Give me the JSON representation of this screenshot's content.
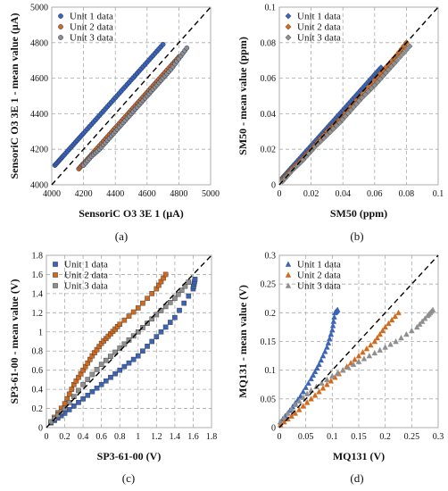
{
  "figure": {
    "labels": [
      "(a)",
      "(b)",
      "(c)",
      "(d)"
    ],
    "legend_labels": [
      "Unit 1 data",
      "Unit 2 data",
      "Unit 3 data"
    ]
  },
  "colors": {
    "unit1": "#3b63b7",
    "unit2": "#d06a1f",
    "unit3": "#8f8f8f",
    "reference": "#000000"
  },
  "chart_data": [
    {
      "type": "scatter",
      "panel": "(a)",
      "xlabel": "SensoriC O3 3E 1 (µA)",
      "ylabel": "SensoriC O3 3E 1 - mean value (µA)",
      "xlim": [
        4000,
        5000
      ],
      "ylim": [
        4000,
        5000
      ],
      "xticks": [
        "4000",
        "4200",
        "4400",
        "4600",
        "4800",
        "5000"
      ],
      "yticks": [
        "4000",
        "4200",
        "4400",
        "4600",
        "4800",
        "5000"
      ],
      "grid": true,
      "legend": "top-left",
      "marker": "circle",
      "reference_line": [
        [
          4000,
          4000
        ],
        [
          5000,
          5000
        ]
      ],
      "series": [
        {
          "name": "Unit 1 data",
          "x": [
            4020,
            4050,
            4080,
            4120,
            4160,
            4200,
            4250,
            4300,
            4350,
            4400,
            4450,
            4500,
            4550,
            4600,
            4650,
            4700
          ],
          "y": [
            4110,
            4140,
            4170,
            4210,
            4250,
            4290,
            4340,
            4390,
            4440,
            4490,
            4540,
            4590,
            4640,
            4690,
            4740,
            4790
          ]
        },
        {
          "name": "Unit 2 data",
          "x": [
            4170,
            4200,
            4250,
            4300,
            4350,
            4400,
            4450,
            4500,
            4550,
            4600,
            4650,
            4700,
            4750,
            4800
          ],
          "y": [
            4090,
            4120,
            4170,
            4220,
            4270,
            4320,
            4370,
            4420,
            4470,
            4520,
            4570,
            4620,
            4670,
            4720
          ]
        },
        {
          "name": "Unit 3 data",
          "x": [
            4200,
            4250,
            4300,
            4350,
            4400,
            4450,
            4500,
            4550,
            4600,
            4650,
            4700,
            4750,
            4800,
            4850
          ],
          "y": [
            4110,
            4160,
            4200,
            4250,
            4300,
            4350,
            4400,
            4450,
            4500,
            4550,
            4600,
            4650,
            4710,
            4770
          ]
        }
      ]
    },
    {
      "type": "scatter",
      "panel": "(b)",
      "xlabel": "SM50 (ppm)",
      "ylabel": "SM50 - mean value (ppm)",
      "xlim": [
        0,
        0.1
      ],
      "ylim": [
        0,
        0.1
      ],
      "xticks": [
        "0",
        "0.02",
        "0.04",
        "0.06",
        "0.08",
        "0.1"
      ],
      "yticks": [
        "0",
        "0.02",
        "0.04",
        "0.06",
        "0.08",
        "0.1"
      ],
      "grid": true,
      "legend": "top-left",
      "marker": "diamond",
      "reference_line": [
        [
          0,
          0
        ],
        [
          0.1,
          0.1
        ]
      ],
      "series": [
        {
          "name": "Unit 1 data",
          "x": [
            0.002,
            0.006,
            0.01,
            0.015,
            0.02,
            0.025,
            0.03,
            0.035,
            0.04,
            0.045,
            0.05,
            0.055,
            0.06,
            0.064
          ],
          "y": [
            0.004,
            0.008,
            0.012,
            0.017,
            0.022,
            0.027,
            0.032,
            0.037,
            0.042,
            0.047,
            0.052,
            0.057,
            0.062,
            0.066
          ]
        },
        {
          "name": "Unit 2 data",
          "x": [
            0.002,
            0.008,
            0.015,
            0.022,
            0.03,
            0.038,
            0.045,
            0.052,
            0.06,
            0.067,
            0.074,
            0.08
          ],
          "y": [
            0.003,
            0.009,
            0.015,
            0.022,
            0.03,
            0.037,
            0.044,
            0.051,
            0.059,
            0.066,
            0.073,
            0.08
          ]
        },
        {
          "name": "Unit 3 data",
          "x": [
            0.002,
            0.008,
            0.015,
            0.022,
            0.03,
            0.038,
            0.045,
            0.052,
            0.06,
            0.067,
            0.074,
            0.082
          ],
          "y": [
            0.002,
            0.008,
            0.014,
            0.021,
            0.028,
            0.035,
            0.042,
            0.049,
            0.056,
            0.063,
            0.07,
            0.078
          ]
        }
      ]
    },
    {
      "type": "scatter",
      "panel": "(c)",
      "xlabel": "SP3-61-00 (V)",
      "ylabel": "SP3-61-00 - mean value (V)",
      "xlim": [
        0,
        1.8
      ],
      "ylim": [
        0,
        1.8
      ],
      "xticks": [
        "0",
        "0.2",
        "0.4",
        "0.6",
        "0.8",
        "1",
        "1.2",
        "1.4",
        "1.6",
        "1.8"
      ],
      "yticks": [
        "0",
        "0.2",
        "0.4",
        "0.6",
        "0.8",
        "1",
        "1.2",
        "1.4",
        "1.6",
        "1.8"
      ],
      "grid": true,
      "legend": "top-left",
      "marker": "square",
      "reference_line": [
        [
          0,
          0
        ],
        [
          1.8,
          1.8
        ]
      ],
      "series": [
        {
          "name": "Unit 1 data",
          "x": [
            0.05,
            0.2,
            0.4,
            0.6,
            0.8,
            1.0,
            1.2,
            1.4,
            1.6,
            1.62
          ],
          "y": [
            0.05,
            0.15,
            0.3,
            0.45,
            0.6,
            0.75,
            0.95,
            1.15,
            1.45,
            1.55
          ]
        },
        {
          "name": "Unit 2 data",
          "x": [
            0.05,
            0.2,
            0.3,
            0.4,
            0.5,
            0.6,
            0.7,
            0.8,
            1.0,
            1.2,
            1.3
          ],
          "y": [
            0.06,
            0.25,
            0.45,
            0.6,
            0.75,
            0.88,
            0.98,
            1.08,
            1.25,
            1.45,
            1.6
          ]
        },
        {
          "name": "Unit 3 data",
          "x": [
            0.05,
            0.2,
            0.4,
            0.6,
            0.8,
            1.0,
            1.2,
            1.4,
            1.55
          ],
          "y": [
            0.06,
            0.2,
            0.45,
            0.66,
            0.83,
            1.0,
            1.18,
            1.35,
            1.52
          ]
        }
      ]
    },
    {
      "type": "scatter",
      "panel": "(d)",
      "xlabel": "MQ131 (V)",
      "ylabel": "MQ131 - mean value (V)",
      "xlim": [
        0,
        0.3
      ],
      "ylim": [
        0,
        0.3
      ],
      "xticks": [
        "0",
        "0.05",
        "0.1",
        "0.15",
        "0.2",
        "0.25",
        "0.3"
      ],
      "yticks": [
        "0",
        "0.05",
        "0.1",
        "0.15",
        "0.2",
        "0.25",
        "0.3"
      ],
      "grid": true,
      "legend": "top-left",
      "marker": "triangle",
      "reference_line": [
        [
          0,
          0
        ],
        [
          0.3,
          0.3
        ]
      ],
      "series": [
        {
          "name": "Unit 1 data",
          "x": [
            0.002,
            0.02,
            0.04,
            0.06,
            0.075,
            0.09,
            0.1,
            0.105,
            0.11
          ],
          "y": [
            0.01,
            0.03,
            0.055,
            0.085,
            0.11,
            0.14,
            0.17,
            0.2,
            0.205
          ]
        },
        {
          "name": "Unit 2 data",
          "x": [
            0.002,
            0.03,
            0.06,
            0.09,
            0.12,
            0.15,
            0.18,
            0.2,
            0.225
          ],
          "y": [
            0.005,
            0.025,
            0.05,
            0.075,
            0.1,
            0.125,
            0.15,
            0.175,
            0.2
          ]
        },
        {
          "name": "Unit 3 data",
          "x": [
            0.002,
            0.03,
            0.06,
            0.1,
            0.14,
            0.18,
            0.22,
            0.26,
            0.28,
            0.29
          ],
          "y": [
            0.01,
            0.04,
            0.065,
            0.09,
            0.11,
            0.13,
            0.15,
            0.175,
            0.195,
            0.205
          ]
        }
      ]
    }
  ]
}
